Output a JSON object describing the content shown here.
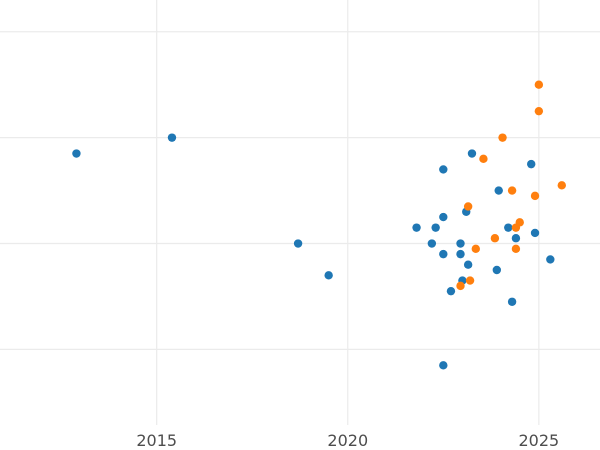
{
  "chart_data": {
    "type": "scatter",
    "title": "",
    "xlabel": "",
    "ylabel": "",
    "x_ticks": [
      2015,
      2020,
      2025
    ],
    "x_tick_labels": [
      "2015",
      "2020",
      "2025"
    ],
    "y_gridlines": [
      2,
      4,
      6,
      8
    ],
    "xlim": [
      2010.9,
      2026.6
    ],
    "ylim": [
      0.1,
      8.6
    ],
    "grid": true,
    "legend": "none",
    "series": [
      {
        "color": "#1f77b4",
        "points": [
          [
            2012.9,
            5.7
          ],
          [
            2015.4,
            6.0
          ],
          [
            2018.7,
            4.0
          ],
          [
            2019.5,
            3.4
          ],
          [
            2021.8,
            4.3
          ],
          [
            2022.3,
            4.3
          ],
          [
            2022.2,
            4.0
          ],
          [
            2022.5,
            4.5
          ],
          [
            2022.5,
            5.4
          ],
          [
            2022.5,
            3.8
          ],
          [
            2022.5,
            1.7
          ],
          [
            2022.7,
            3.1
          ],
          [
            2022.95,
            4.0
          ],
          [
            2022.95,
            3.8
          ],
          [
            2023.0,
            3.3
          ],
          [
            2023.1,
            4.6
          ],
          [
            2023.15,
            3.6
          ],
          [
            2023.25,
            5.7
          ],
          [
            2023.9,
            3.5
          ],
          [
            2023.95,
            5.0
          ],
          [
            2024.2,
            4.3
          ],
          [
            2024.3,
            2.9
          ],
          [
            2024.4,
            4.1
          ],
          [
            2024.8,
            5.5
          ],
          [
            2024.9,
            4.2
          ],
          [
            2025.3,
            3.7
          ]
        ]
      },
      {
        "color": "#ff7f0e",
        "points": [
          [
            2022.95,
            3.2
          ],
          [
            2023.15,
            4.7
          ],
          [
            2023.2,
            3.3
          ],
          [
            2023.35,
            3.9
          ],
          [
            2023.55,
            5.6
          ],
          [
            2023.85,
            4.1
          ],
          [
            2024.05,
            6.0
          ],
          [
            2024.3,
            5.0
          ],
          [
            2024.4,
            4.3
          ],
          [
            2024.4,
            3.9
          ],
          [
            2024.5,
            4.4
          ],
          [
            2024.9,
            4.9
          ],
          [
            2025.0,
            7.0
          ],
          [
            2025.0,
            6.5
          ],
          [
            2025.6,
            5.1
          ]
        ]
      }
    ]
  }
}
